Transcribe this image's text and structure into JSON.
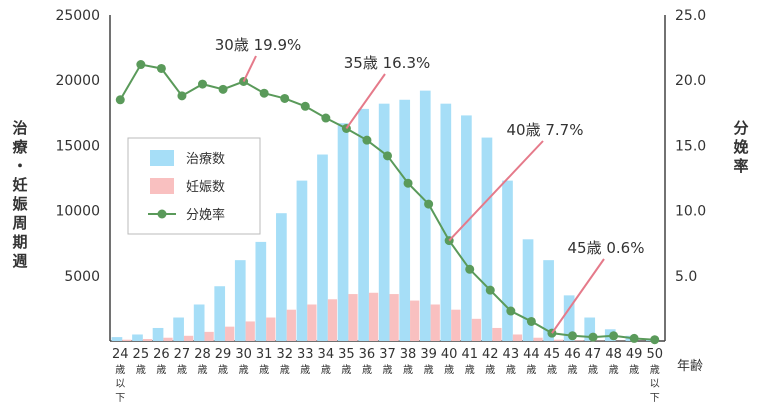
{
  "chart_data": {
    "type": "bar",
    "y_axis_left_label": "治療・妊娠周期週",
    "y_axis_right_label": "分娩率",
    "x_axis_unit_label": "年齢",
    "left_ticks": [
      "25000",
      "20000",
      "15000",
      "10000",
      "5000"
    ],
    "left_tick_values": [
      25000,
      20000,
      15000,
      10000,
      5000
    ],
    "right_ticks": [
      "25.0",
      "20.0",
      "15.0",
      "10.0",
      "5.0"
    ],
    "right_tick_values": [
      25,
      20,
      15,
      10,
      5
    ],
    "ylim_left": [
      0,
      25000
    ],
    "ylim_right": [
      0,
      25
    ],
    "categories": [
      "24",
      "25",
      "26",
      "27",
      "28",
      "29",
      "30",
      "31",
      "32",
      "33",
      "34",
      "35",
      "36",
      "37",
      "38",
      "39",
      "40",
      "41",
      "42",
      "43",
      "44",
      "45",
      "46",
      "47",
      "48",
      "49",
      "50"
    ],
    "category_suffix": [
      "歳",
      "以",
      "下"
    ],
    "category_suffix_short": "歳",
    "series": [
      {
        "name": "治療数",
        "type": "bar",
        "color": "#a6def7",
        "values": [
          300,
          500,
          1000,
          1800,
          2800,
          4200,
          6200,
          7600,
          9800,
          12300,
          14300,
          16700,
          17800,
          18200,
          18500,
          19200,
          18200,
          17300,
          15600,
          12300,
          7800,
          6200,
          3500,
          1800,
          900,
          400,
          100
        ]
      },
      {
        "name": "妊娠数",
        "type": "bar",
        "color": "#f9c0c0",
        "values": [
          100,
          150,
          250,
          400,
          700,
          1100,
          1500,
          1800,
          2400,
          2800,
          3200,
          3600,
          3700,
          3600,
          3100,
          2800,
          2400,
          1700,
          1000,
          500,
          250,
          100,
          50,
          20,
          10,
          5,
          0
        ]
      },
      {
        "name": "分娩率",
        "type": "line",
        "color": "#5a9a5a",
        "values": [
          18.5,
          21.2,
          20.9,
          18.8,
          19.7,
          19.3,
          19.9,
          19.0,
          18.6,
          18.0,
          17.1,
          16.3,
          15.4,
          14.2,
          12.1,
          10.5,
          7.7,
          5.5,
          3.9,
          2.3,
          1.5,
          0.6,
          0.4,
          0.3,
          0.4,
          0.2,
          0.1
        ]
      }
    ],
    "annotations": [
      {
        "category": "30",
        "text": "30歳 19.9%"
      },
      {
        "category": "35",
        "text": "35歳 16.3%"
      },
      {
        "category": "40",
        "text": "40歳 7.7%"
      },
      {
        "category": "45",
        "text": "45歳 0.6%"
      }
    ],
    "legend_position": "left-middle",
    "grid": false
  }
}
